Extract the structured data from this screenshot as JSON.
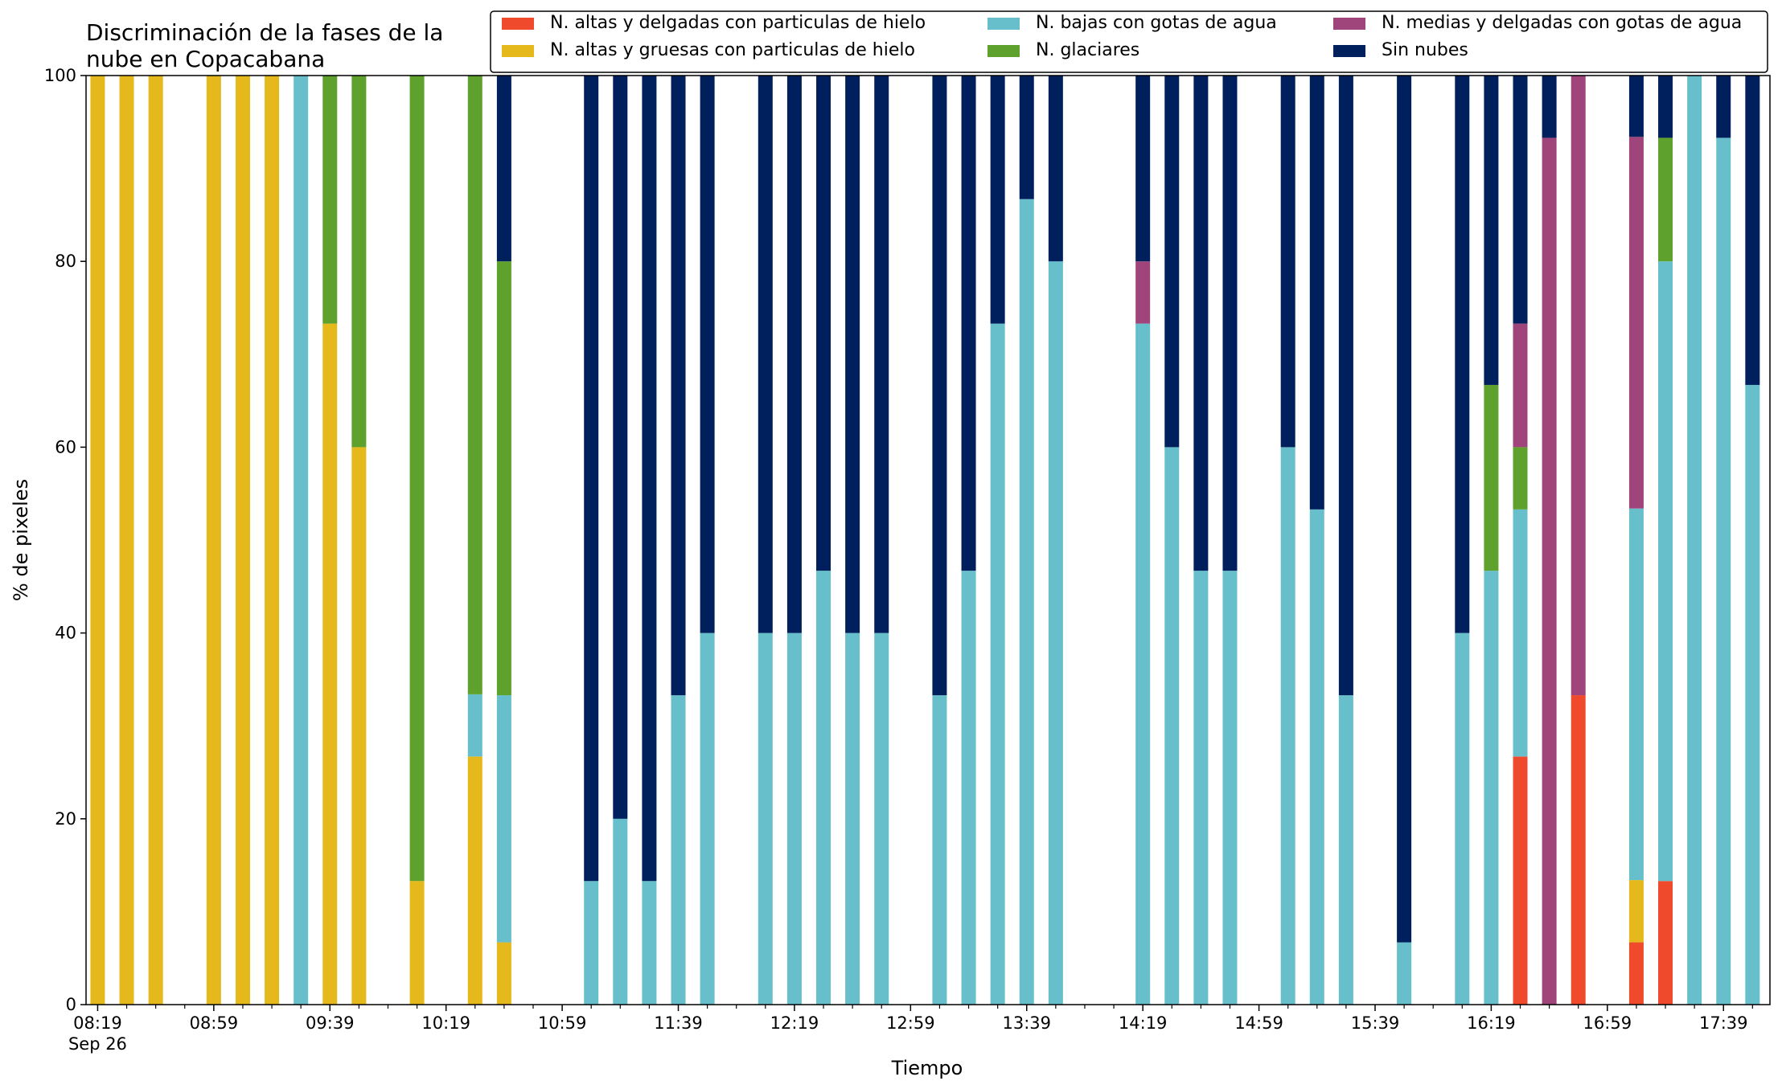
{
  "chart_data": {
    "type": "bar",
    "stacked": true,
    "title_lines": [
      "Discriminación de la fases de la",
      "nube en Copacabana"
    ],
    "xlabel": "Tiempo",
    "ylabel": "% de pixeles",
    "ylim": [
      0,
      100
    ],
    "yticks": [
      0,
      20,
      40,
      60,
      80,
      100
    ],
    "xlim": [
      "08:15",
      "17:55"
    ],
    "date_label": "Sep 26",
    "major_ticks": [
      "08:19",
      "08:59",
      "09:39",
      "10:19",
      "10:59",
      "11:39",
      "12:19",
      "12:59",
      "13:39",
      "14:19",
      "14:59",
      "15:39",
      "16:19",
      "16:59",
      "17:39"
    ],
    "minor_tick_interval_minutes": 10,
    "legend_placement": "top-right",
    "grid": false,
    "series": [
      {
        "name": "N. altas y delgadas con particulas de hielo",
        "color": "#ef4a2c"
      },
      {
        "name": "N. altas y gruesas con particulas de hielo",
        "color": "#e5b81b"
      },
      {
        "name": "N. bajas con gotas de agua",
        "color": "#67bfcb"
      },
      {
        "name": "N. glaciares",
        "color": "#5ea12c"
      },
      {
        "name": "N. medias y delgadas con gotas de agua",
        "color": "#a0457b"
      },
      {
        "name": "Sin nubes",
        "color": "#00205d"
      }
    ],
    "bars": [
      {
        "time": "08:19",
        "values": [
          0,
          100,
          0,
          0,
          0,
          0
        ]
      },
      {
        "time": "08:29",
        "values": [
          0,
          100,
          0,
          0,
          0,
          0
        ]
      },
      {
        "time": "08:39",
        "values": [
          0,
          100,
          0,
          0,
          0,
          0
        ]
      },
      {
        "time": "08:59",
        "values": [
          0,
          100,
          0,
          0,
          0,
          0
        ]
      },
      {
        "time": "09:09",
        "values": [
          0,
          100,
          0,
          0,
          0,
          0
        ]
      },
      {
        "time": "09:19",
        "values": [
          0,
          100,
          0,
          0,
          0,
          0
        ]
      },
      {
        "time": "09:29",
        "values": [
          0,
          0,
          100,
          0,
          0,
          0
        ]
      },
      {
        "time": "09:39",
        "values": [
          0,
          73.3,
          0,
          26.7,
          0,
          0
        ]
      },
      {
        "time": "09:49",
        "values": [
          0,
          60,
          0,
          40,
          0,
          0
        ]
      },
      {
        "time": "10:09",
        "values": [
          0,
          13.3,
          0,
          86.7,
          0,
          0
        ]
      },
      {
        "time": "10:29",
        "values": [
          0,
          26.7,
          6.7,
          66.6,
          0,
          0
        ]
      },
      {
        "time": "10:39",
        "values": [
          0,
          6.7,
          26.6,
          46.7,
          0,
          20
        ]
      },
      {
        "time": "11:09",
        "values": [
          0,
          0,
          13.3,
          0,
          0,
          86.7
        ]
      },
      {
        "time": "11:19",
        "values": [
          0,
          0,
          20,
          0,
          0,
          80
        ]
      },
      {
        "time": "11:29",
        "values": [
          0,
          0,
          13.3,
          0,
          0,
          86.7
        ]
      },
      {
        "time": "11:39",
        "values": [
          0,
          0,
          33.3,
          0,
          0,
          66.7
        ]
      },
      {
        "time": "11:49",
        "values": [
          0,
          0,
          40,
          0,
          0,
          60
        ]
      },
      {
        "time": "12:09",
        "values": [
          0,
          0,
          40,
          0,
          0,
          60
        ]
      },
      {
        "time": "12:19",
        "values": [
          0,
          0,
          40,
          0,
          0,
          60
        ]
      },
      {
        "time": "12:29",
        "values": [
          0,
          0,
          46.7,
          0,
          0,
          53.3
        ]
      },
      {
        "time": "12:39",
        "values": [
          0,
          0,
          40,
          0,
          0,
          60
        ]
      },
      {
        "time": "12:49",
        "values": [
          0,
          0,
          40,
          0,
          0,
          60
        ]
      },
      {
        "time": "13:09",
        "values": [
          0,
          0,
          33.3,
          0,
          0,
          66.7
        ]
      },
      {
        "time": "13:19",
        "values": [
          0,
          0,
          46.7,
          0,
          0,
          53.3
        ]
      },
      {
        "time": "13:29",
        "values": [
          0,
          0,
          73.3,
          0,
          0,
          26.7
        ]
      },
      {
        "time": "13:39",
        "values": [
          0,
          0,
          86.7,
          0,
          0,
          13.3
        ]
      },
      {
        "time": "13:49",
        "values": [
          0,
          0,
          80,
          0,
          0,
          20
        ]
      },
      {
        "time": "14:19",
        "values": [
          0,
          0,
          73.3,
          0,
          6.7,
          20
        ]
      },
      {
        "time": "14:29",
        "values": [
          0,
          0,
          60,
          0,
          0,
          40
        ]
      },
      {
        "time": "14:39",
        "values": [
          0,
          0,
          46.7,
          0,
          0,
          53.3
        ]
      },
      {
        "time": "14:49",
        "values": [
          0,
          0,
          46.7,
          0,
          0,
          53.3
        ]
      },
      {
        "time": "15:09",
        "values": [
          0,
          0,
          60,
          0,
          0,
          40
        ]
      },
      {
        "time": "15:19",
        "values": [
          0,
          0,
          53.3,
          0,
          0,
          46.7
        ]
      },
      {
        "time": "15:29",
        "values": [
          0,
          0,
          33.3,
          0,
          0,
          66.7
        ]
      },
      {
        "time": "15:49",
        "values": [
          0,
          0,
          6.7,
          0,
          0,
          93.3
        ]
      },
      {
        "time": "16:09",
        "values": [
          0,
          0,
          40,
          0,
          0,
          60
        ]
      },
      {
        "time": "16:19",
        "values": [
          0,
          0,
          46.7,
          20,
          0,
          33.3
        ]
      },
      {
        "time": "16:29",
        "values": [
          26.7,
          0,
          26.6,
          6.7,
          13.3,
          26.7
        ]
      },
      {
        "time": "16:39",
        "values": [
          0,
          0,
          0,
          0,
          93.3,
          6.7
        ]
      },
      {
        "time": "16:49",
        "values": [
          33.3,
          0,
          0,
          0,
          66.7,
          0
        ]
      },
      {
        "time": "17:09",
        "values": [
          6.7,
          6.7,
          40,
          0,
          40,
          6.6
        ]
      },
      {
        "time": "17:19",
        "values": [
          13.3,
          0,
          66.7,
          13.3,
          0,
          6.7
        ]
      },
      {
        "time": "17:29",
        "values": [
          0,
          0,
          100,
          0,
          0,
          0
        ]
      },
      {
        "time": "17:39",
        "values": [
          0,
          0,
          93.3,
          0,
          0,
          6.7
        ]
      },
      {
        "time": "17:49",
        "values": [
          0,
          0,
          66.7,
          0,
          0,
          33.3
        ]
      }
    ]
  }
}
